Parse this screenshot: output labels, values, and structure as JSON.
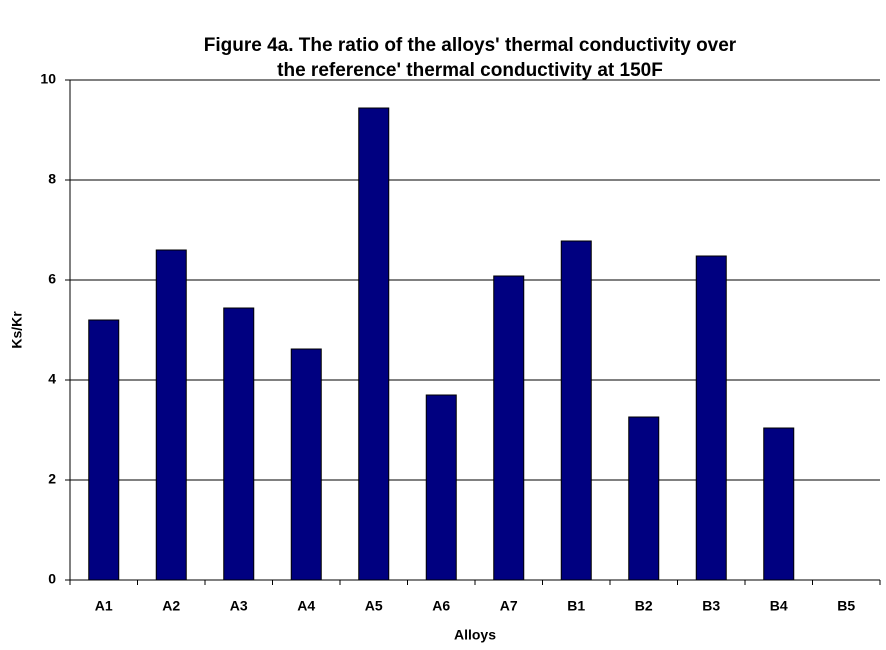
{
  "chart_data": {
    "type": "bar",
    "title": [
      "Figure 4a. The ratio of the alloys' thermal conductivity over",
      "the reference' thermal conductivity at 150F"
    ],
    "x_label": "Alloys",
    "y_label": "Ks/Kr",
    "categories": [
      "A1",
      "A2",
      "A3",
      "A4",
      "A5",
      "A6",
      "A7",
      "B1",
      "B2",
      "B3",
      "B4",
      "B5"
    ],
    "values": [
      5.2,
      6.6,
      5.44,
      4.62,
      9.44,
      3.7,
      6.08,
      6.78,
      3.26,
      6.48,
      3.04,
      null
    ],
    "color": "#000080",
    "ylim": [
      0,
      10
    ],
    "yticks": [
      0,
      2,
      4,
      6,
      8,
      10
    ],
    "grid": true
  }
}
